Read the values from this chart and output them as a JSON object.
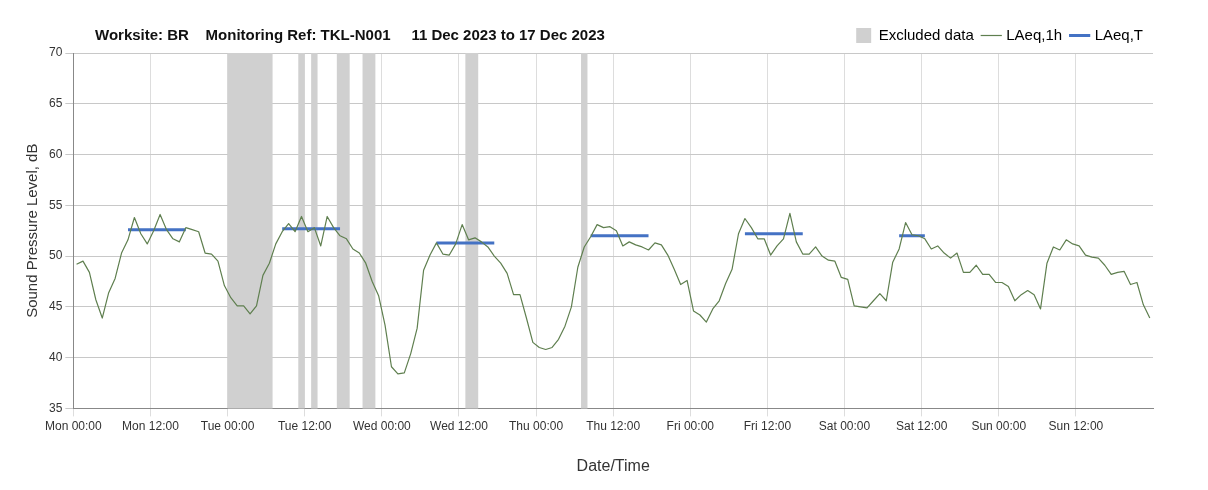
{
  "chart_data": {
    "type": "line",
    "title": "Worksite: BR    Monitoring Ref: TKL-N001     11 Dec 2023 to 17 Dec 2023",
    "xlabel": "Date/Time",
    "ylabel": "Sound Pressure Level, dB",
    "xlim": [
      "2023-12-11T00:00",
      "2023-12-18T00:00"
    ],
    "ylim": [
      35,
      70
    ],
    "xticks": [
      {
        "value": "2023-12-11T00:00",
        "label": "Mon 00:00"
      },
      {
        "value": "2023-12-11T12:00",
        "label": "Mon 12:00"
      },
      {
        "value": "2023-12-12T00:00",
        "label": "Tue 00:00"
      },
      {
        "value": "2023-12-12T12:00",
        "label": "Tue 12:00"
      },
      {
        "value": "2023-12-13T00:00",
        "label": "Wed 00:00"
      },
      {
        "value": "2023-12-13T12:00",
        "label": "Wed 12:00"
      },
      {
        "value": "2023-12-14T00:00",
        "label": "Thu 00:00"
      },
      {
        "value": "2023-12-14T12:00",
        "label": "Thu 12:00"
      },
      {
        "value": "2023-12-15T00:00",
        "label": "Fri 00:00"
      },
      {
        "value": "2023-12-15T12:00",
        "label": "Fri 12:00"
      },
      {
        "value": "2023-12-16T00:00",
        "label": "Sat 00:00"
      },
      {
        "value": "2023-12-16T12:00",
        "label": "Sat 12:00"
      },
      {
        "value": "2023-12-17T00:00",
        "label": "Sun 00:00"
      },
      {
        "value": "2023-12-17T12:00",
        "label": "Sun 12:00"
      }
    ],
    "yticks": [
      35,
      40,
      45,
      50,
      55,
      60,
      65,
      70
    ],
    "grid": true,
    "legend": "top right",
    "marker": "none",
    "bands": [
      {
        "axis": "x",
        "from": "2023-12-12T00:00",
        "to": "2023-12-12T07:00",
        "label": "Excluded data",
        "color": "#d0d0d0"
      },
      {
        "axis": "x",
        "from": "2023-12-12T11:00",
        "to": "2023-12-12T12:00",
        "color": "#d0d0d0"
      },
      {
        "axis": "x",
        "from": "2023-12-12T13:00",
        "to": "2023-12-12T14:00",
        "color": "#d0d0d0"
      },
      {
        "axis": "x",
        "from": "2023-12-12T17:00",
        "to": "2023-12-12T19:00",
        "color": "#d0d0d0"
      },
      {
        "axis": "x",
        "from": "2023-12-12T21:00",
        "to": "2023-12-12T23:00",
        "color": "#d0d0d0"
      },
      {
        "axis": "x",
        "from": "2023-12-13T13:00",
        "to": "2023-12-13T15:00",
        "color": "#d0d0d0"
      },
      {
        "axis": "x",
        "from": "2023-12-14T07:00",
        "to": "2023-12-14T08:00",
        "color": "#d0d0d0"
      }
    ],
    "series": [
      {
        "name": "LAeq,1h",
        "color": "#5f7f4f",
        "x": [
          "2023-12-11T00:30",
          "2023-12-11T01:30",
          "2023-12-11T02:30",
          "2023-12-11T03:30",
          "2023-12-11T04:30",
          "2023-12-11T05:30",
          "2023-12-11T06:30",
          "2023-12-11T07:30",
          "2023-12-11T08:30",
          "2023-12-11T09:30",
          "2023-12-11T10:30",
          "2023-12-11T11:30",
          "2023-12-11T12:30",
          "2023-12-11T13:30",
          "2023-12-11T14:30",
          "2023-12-11T15:30",
          "2023-12-11T16:30",
          "2023-12-11T17:30",
          "2023-12-11T18:30",
          "2023-12-11T19:30",
          "2023-12-11T20:30",
          "2023-12-11T21:30",
          "2023-12-11T22:30",
          "2023-12-11T23:30",
          "2023-12-12T00:30",
          "2023-12-12T01:30",
          "2023-12-12T02:30",
          "2023-12-12T03:30",
          "2023-12-12T04:30",
          "2023-12-12T05:30",
          "2023-12-12T06:30",
          "2023-12-12T07:30",
          "2023-12-12T08:30",
          "2023-12-12T09:30",
          "2023-12-12T10:30",
          "2023-12-12T11:30",
          "2023-12-12T12:30",
          "2023-12-12T13:30",
          "2023-12-12T14:30",
          "2023-12-12T15:30",
          "2023-12-12T16:30",
          "2023-12-12T17:30",
          "2023-12-12T18:30",
          "2023-12-12T19:30",
          "2023-12-12T20:30",
          "2023-12-12T21:30",
          "2023-12-12T22:30",
          "2023-12-12T23:30",
          "2023-12-13T00:30",
          "2023-12-13T01:30",
          "2023-12-13T02:30",
          "2023-12-13T03:30",
          "2023-12-13T04:30",
          "2023-12-13T05:30",
          "2023-12-13T06:30",
          "2023-12-13T07:30",
          "2023-12-13T08:30",
          "2023-12-13T09:30",
          "2023-12-13T10:30",
          "2023-12-13T11:30",
          "2023-12-13T12:30",
          "2023-12-13T13:30",
          "2023-12-13T14:30",
          "2023-12-13T15:30",
          "2023-12-13T16:30",
          "2023-12-13T17:30",
          "2023-12-13T18:30",
          "2023-12-13T19:30",
          "2023-12-13T20:30",
          "2023-12-13T21:30",
          "2023-12-13T22:30",
          "2023-12-13T23:30",
          "2023-12-14T00:30",
          "2023-12-14T01:30",
          "2023-12-14T02:30",
          "2023-12-14T03:30",
          "2023-12-14T04:30",
          "2023-12-14T05:30",
          "2023-12-14T06:30",
          "2023-12-14T07:30",
          "2023-12-14T08:30",
          "2023-12-14T09:30",
          "2023-12-14T10:30",
          "2023-12-14T11:30",
          "2023-12-14T12:30",
          "2023-12-14T13:30",
          "2023-12-14T14:30",
          "2023-12-14T15:30",
          "2023-12-14T16:30",
          "2023-12-14T17:30",
          "2023-12-14T18:30",
          "2023-12-14T19:30",
          "2023-12-14T20:30",
          "2023-12-14T21:30",
          "2023-12-14T22:30",
          "2023-12-14T23:30",
          "2023-12-15T00:30",
          "2023-12-15T01:30",
          "2023-12-15T02:30",
          "2023-12-15T03:30",
          "2023-12-15T04:30",
          "2023-12-15T05:30",
          "2023-12-15T06:30",
          "2023-12-15T07:30",
          "2023-12-15T08:30",
          "2023-12-15T09:30",
          "2023-12-15T10:30",
          "2023-12-15T11:30",
          "2023-12-15T12:30",
          "2023-12-15T13:30",
          "2023-12-15T14:30",
          "2023-12-15T15:30",
          "2023-12-15T16:30",
          "2023-12-15T17:30",
          "2023-12-15T18:30",
          "2023-12-15T19:30",
          "2023-12-15T20:30",
          "2023-12-15T21:30",
          "2023-12-15T22:30",
          "2023-12-15T23:30",
          "2023-12-16T00:30",
          "2023-12-16T01:30",
          "2023-12-16T02:30",
          "2023-12-16T03:30",
          "2023-12-16T04:30",
          "2023-12-16T05:30",
          "2023-12-16T06:30",
          "2023-12-16T07:30",
          "2023-12-16T08:30",
          "2023-12-16T09:30",
          "2023-12-16T10:30",
          "2023-12-16T11:30",
          "2023-12-16T12:30",
          "2023-12-16T13:30",
          "2023-12-16T14:30",
          "2023-12-16T15:30",
          "2023-12-16T16:30",
          "2023-12-16T17:30",
          "2023-12-16T18:30",
          "2023-12-16T19:30",
          "2023-12-16T20:30",
          "2023-12-16T21:30",
          "2023-12-16T22:30",
          "2023-12-16T23:30",
          "2023-12-17T00:30",
          "2023-12-17T01:30",
          "2023-12-17T02:30",
          "2023-12-17T03:30",
          "2023-12-17T04:30",
          "2023-12-17T05:30",
          "2023-12-17T06:30",
          "2023-12-17T07:30",
          "2023-12-17T08:30",
          "2023-12-17T09:30",
          "2023-12-17T10:30",
          "2023-12-17T11:30",
          "2023-12-17T12:30",
          "2023-12-17T13:30",
          "2023-12-17T14:30",
          "2023-12-17T15:30",
          "2023-12-17T16:30",
          "2023-12-17T17:30",
          "2023-12-17T18:30",
          "2023-12-17T19:30",
          "2023-12-17T20:30",
          "2023-12-17T21:30",
          "2023-12-17T22:30",
          "2023-12-17T23:30"
        ],
        "values": [
          49.2,
          49.5,
          48.4,
          45.7,
          43.9,
          46.4,
          47.8,
          50.3,
          51.6,
          53.8,
          52.2,
          51.2,
          52.5,
          54.1,
          52.6,
          51.7,
          51.4,
          52.8,
          52.6,
          52.4,
          50.3,
          50.2,
          49.5,
          47.1,
          45.9,
          45.1,
          45.1,
          44.3,
          45.1,
          48.1,
          49.3,
          51.2,
          52.4,
          53.2,
          52.4,
          53.9,
          52.4,
          52.8,
          51.0,
          53.9,
          52.8,
          52.0,
          51.7,
          50.7,
          50.3,
          49.3,
          47.5,
          46.1,
          43.2,
          39.1,
          38.4,
          38.5,
          40.4,
          42.9,
          48.6,
          50.1,
          51.3,
          50.2,
          50.1,
          51.2,
          53.1,
          51.6,
          51.8,
          51.4,
          50.9,
          50.0,
          49.3,
          48.3,
          46.2,
          46.2,
          43.9,
          41.5,
          41.0,
          40.8,
          41.0,
          41.8,
          43.1,
          45.0,
          48.9,
          50.9,
          51.9,
          53.1,
          52.8,
          52.9,
          52.5,
          51.0,
          51.4,
          51.1,
          50.9,
          50.6,
          51.3,
          51.1,
          50.1,
          48.7,
          47.2,
          47.6,
          44.6,
          44.2,
          43.5,
          44.8,
          45.6,
          47.3,
          48.7,
          52.2,
          53.7,
          52.8,
          51.7,
          51.7,
          50.1,
          51.0,
          51.7,
          54.2,
          51.4,
          50.2,
          50.2,
          50.9,
          50.0,
          49.6,
          49.5,
          47.9,
          47.7,
          45.1,
          45.0,
          44.9,
          45.6,
          46.3,
          45.6,
          49.4,
          50.7,
          53.3,
          52.1,
          52.0,
          51.7,
          50.7,
          51.0,
          50.3,
          49.8,
          50.3,
          48.4,
          48.4,
          49.1,
          48.2,
          48.2,
          47.4,
          47.4,
          47.0,
          45.6,
          46.2,
          46.6,
          46.2,
          44.8,
          49.3,
          50.9,
          50.6,
          51.6,
          51.2,
          51.0,
          50.1,
          49.9,
          49.8,
          49.1,
          48.2,
          48.4,
          48.5,
          47.2,
          47.4,
          45.2,
          43.9
        ]
      },
      {
        "name": "LAeq,T",
        "color": "#4472c4",
        "x": [
          "2023-12-11T08:30",
          "2023-12-11T17:30",
          "2023-12-12T01:00",
          "2023-12-12T08:30",
          "2023-12-12T17:30",
          "2023-12-13T01:00",
          "2023-12-13T08:30",
          "2023-12-13T17:30",
          "2023-12-14T01:00",
          "2023-12-14T08:30",
          "2023-12-14T17:30",
          "2023-12-15T01:00",
          "2023-12-15T08:30",
          "2023-12-15T17:30",
          "2023-12-16T01:00",
          "2023-12-16T08:30",
          "2023-12-16T12:30"
        ],
        "values": [
          52.6,
          52.6,
          null,
          52.7,
          52.7,
          null,
          51.3,
          51.3,
          null,
          52.0,
          52.0,
          null,
          52.2,
          52.2,
          null,
          52.0,
          52.0
        ]
      }
    ]
  }
}
